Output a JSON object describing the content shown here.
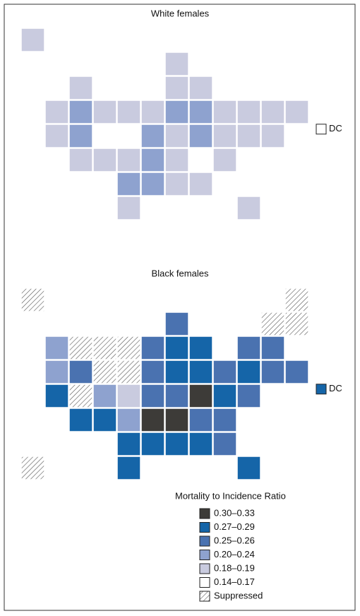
{
  "maps": [
    {
      "title": "White females",
      "dc_label": "DC",
      "dc_class": 5,
      "regions": [
        4,
        5,
        4,
        5,
        5,
        5,
        4,
        5,
        5,
        5,
        4,
        4,
        5,
        5,
        4,
        3,
        4,
        4,
        4,
        3,
        3,
        4,
        4,
        4,
        4,
        4,
        3,
        5,
        5,
        3,
        4,
        3,
        4,
        4,
        4,
        4,
        4,
        4,
        3,
        4,
        5,
        4,
        3,
        3,
        4,
        4,
        5,
        5,
        4,
        4
      ]
    },
    {
      "title": "Black females",
      "dc_label": "DC",
      "dc_class": 1,
      "regions": [
        6,
        6,
        2,
        6,
        6,
        3,
        6,
        6,
        6,
        2,
        1,
        1,
        2,
        2,
        3,
        2,
        6,
        6,
        2,
        1,
        1,
        2,
        1,
        2,
        2,
        1,
        6,
        3,
        4,
        2,
        2,
        0,
        1,
        2,
        5,
        1,
        1,
        3,
        0,
        0,
        2,
        2,
        1,
        1,
        1,
        1,
        2,
        6,
        1,
        1
      ]
    }
  ],
  "legend": {
    "title": "Mortality to Incidence Ratio",
    "items": [
      {
        "label": "0.30–0.33",
        "color": "#3d3b38"
      },
      {
        "label": "0.27–0.29",
        "color": "#1565a8"
      },
      {
        "label": "0.25–0.26",
        "color": "#4a72b0"
      },
      {
        "label": "0.20–0.24",
        "color": "#8ea2cf"
      },
      {
        "label": "0.18–0.19",
        "color": "#c9cbdf"
      },
      {
        "label": "0.14–0.17",
        "color": "#ffffff"
      },
      {
        "label": "Suppressed",
        "color": "#ffffff",
        "hatched": true
      }
    ]
  }
}
